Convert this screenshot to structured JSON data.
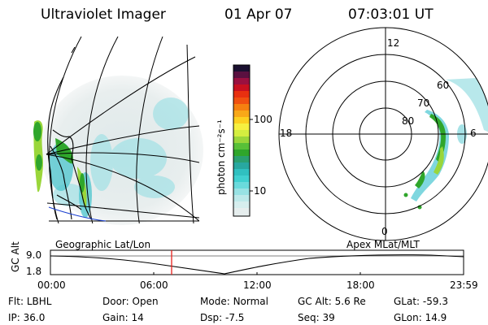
{
  "header": {
    "instrument": "Ultraviolet Imager",
    "date": "01 Apr 07",
    "time": "07:03:01 UT"
  },
  "colorbar": {
    "unit_label": "photon cm⁻²s⁻¹",
    "ticks": [
      "100",
      "10"
    ]
  },
  "polar_plot": {
    "mlt_labels": [
      "12",
      "18",
      "6",
      "0"
    ],
    "mlat_labels": [
      "60",
      "70",
      "80"
    ]
  },
  "timeline": {
    "y_axis_label": "GC Alt",
    "y_ticks": [
      "9.0",
      "1.8"
    ],
    "left_caption": "Geographic Lat/Lon",
    "right_caption": "Apex MLat/MLT",
    "x_ticks": [
      "00:00",
      "06:00",
      "12:00",
      "18:00",
      "23:59"
    ],
    "marker_time": "07:03"
  },
  "info": {
    "filter_label": "Flt:",
    "filter_value": "LBHL",
    "ip_label": "IP:",
    "ip_value": "36.0",
    "door_label": "Door:",
    "door_value": "Open",
    "gain_label": "Gain:",
    "gain_value": "14",
    "mode_label": "Mode:",
    "mode_value": "Normal",
    "dsp_label": "Dsp:",
    "dsp_value": "-7.5",
    "gcalt_label": "GC Alt:",
    "gcalt_value": "5.6 Re",
    "seq_label": "Seq:",
    "seq_value": "39",
    "glat_label": "GLat:",
    "glat_value": "-59.3",
    "glon_label": "GLon:",
    "glon_value": "14.9"
  },
  "colors": {
    "marker": "#e8201c",
    "aurora_bright": "#2fa62b",
    "aurora_mid": "#9ad63a",
    "aurora_faint": "#7fd7df",
    "background_glow": "#e6ecec"
  }
}
